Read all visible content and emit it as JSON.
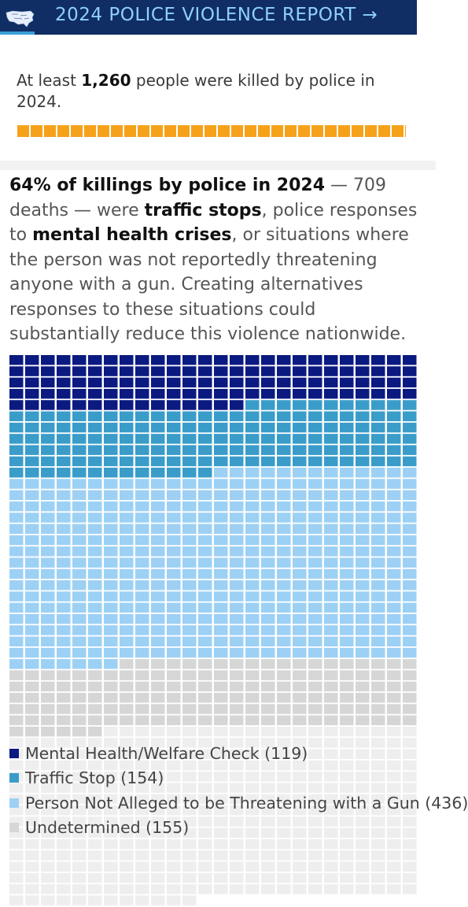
{
  "header": {
    "title": "2024 POLICE VIOLENCE REPORT →"
  },
  "intro": {
    "prefix": "At least ",
    "count": "1,260",
    "suffix": " people were killed by police in 2024."
  },
  "paragraph": {
    "p1_bold": "64% of killings by police in 2024",
    "p1": " — 709 deaths — were ",
    "p2_bold": "traffic stops",
    "p2": ", police responses to ",
    "p3_bold": "mental health crises",
    "p3": ", or situations where the person was not reportedly threatening anyone with a gun. Creating alternatives responses to these situations could substantially reduce this violence nationwide."
  },
  "chart_data": {
    "type": "waffle",
    "total": 1260,
    "columns": 26,
    "series": [
      {
        "name": "Mental Health/Welfare Check",
        "value": 119,
        "color": "#0b1a80"
      },
      {
        "name": "Traffic Stop",
        "value": 154,
        "color": "#3a9cc9"
      },
      {
        "name": "Person Not Alleged to be Threatening with a Gun",
        "value": 436,
        "color": "#9dd0f5"
      },
      {
        "name": "Undetermined",
        "value": 155,
        "color": "#d6d6d6"
      },
      {
        "name": "",
        "value": 396,
        "color": "#eeeeee"
      }
    ]
  },
  "legend": {
    "items": [
      {
        "label": "Mental Health/Welfare Check (119)",
        "color": "#0b1a80"
      },
      {
        "label": "Traffic Stop (154)",
        "color": "#3a9cc9"
      },
      {
        "label": "Person Not Alleged to be Threatening with a Gun (436)",
        "color": "#9dd0f5"
      },
      {
        "label": "Undetermined (155)",
        "color": "#d6d6d6"
      }
    ]
  }
}
